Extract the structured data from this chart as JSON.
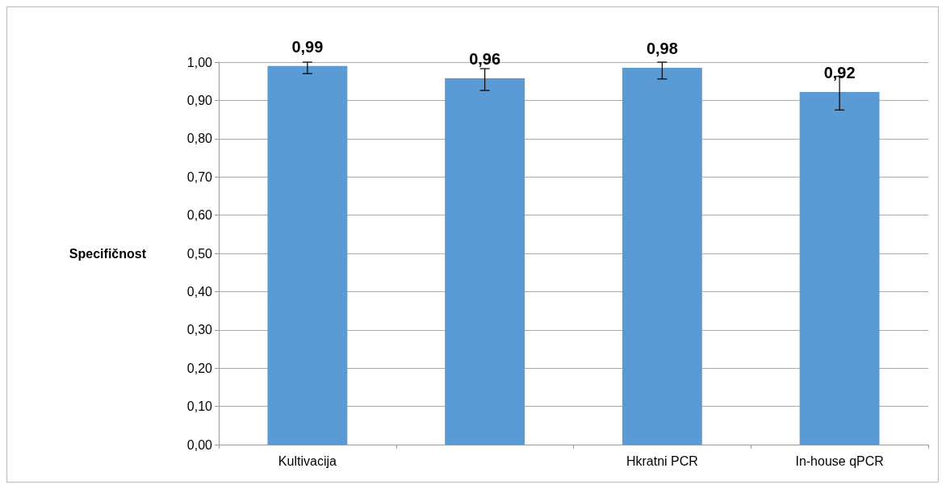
{
  "chart_data": {
    "type": "bar",
    "ylabel": "Specifičnost",
    "categories": [
      "Kultivacija",
      null,
      "Hkratni PCR",
      "In-house qPCR"
    ],
    "values": [
      0.99,
      0.958,
      0.985,
      0.922
    ],
    "value_labels": [
      "0,99",
      "0,96",
      "0,98",
      "0,92"
    ],
    "errors": [
      [
        0.97,
        1.0
      ],
      [
        0.926,
        0.983
      ],
      [
        0.956,
        1.0
      ],
      [
        0.875,
        0.963
      ]
    ],
    "color": "#5b9bd5",
    "ylim": [
      0,
      1
    ],
    "yticks": [
      {
        "value": 0,
        "label": "0,00"
      },
      {
        "value": 0.1,
        "label": "0,10"
      },
      {
        "value": 0.2,
        "label": "0,20"
      },
      {
        "value": 0.3,
        "label": "0,30"
      },
      {
        "value": 0.4,
        "label": "0,40"
      },
      {
        "value": 0.5,
        "label": "0,50"
      },
      {
        "value": 0.6,
        "label": "0,60"
      },
      {
        "value": 0.7,
        "label": "0,70"
      },
      {
        "value": 0.8,
        "label": "0,80"
      },
      {
        "value": 0.9,
        "label": "0,90"
      },
      {
        "value": 1,
        "label": "1,00"
      }
    ],
    "grid": "y"
  }
}
